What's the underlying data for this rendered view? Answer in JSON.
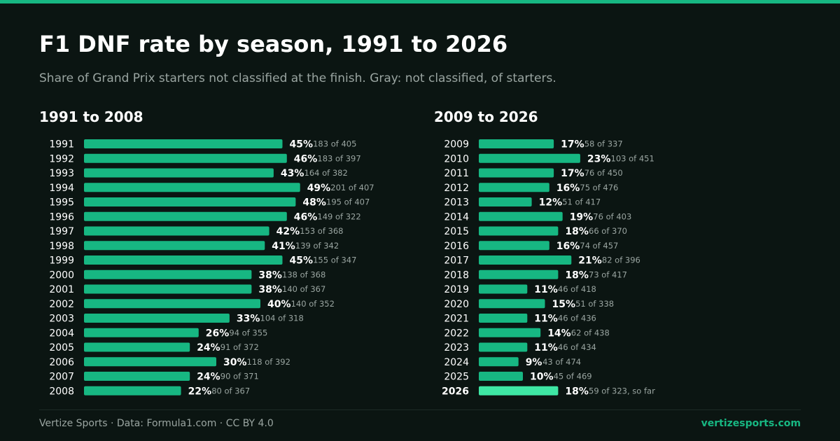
{
  "title": "F1 DNF rate by season, 1991 to 2026",
  "subtitle": "Share of Grand Prix starters not classified at the finish. Gray: not classified, of starters.",
  "footer": {
    "credit": "Vertize Sports · Data: Formula1.com · CC BY 4.0",
    "site": "vertizesports.com"
  },
  "colors": {
    "accent": "#17b782",
    "highlight": "#3ee7a4",
    "background": "#0b1512",
    "muted": "#9aa5a1"
  },
  "chart_data": {
    "type": "bar",
    "orientation": "horizontal",
    "grid": false,
    "panels": [
      {
        "title": "1991 to 2008",
        "rows": [
          {
            "season": "1991",
            "pct": 45,
            "pct_label": "45%",
            "count_label": "183 of 405"
          },
          {
            "season": "1992",
            "pct": 46,
            "pct_label": "46%",
            "count_label": "183 of 397"
          },
          {
            "season": "1993",
            "pct": 43,
            "pct_label": "43%",
            "count_label": "164 of 382"
          },
          {
            "season": "1994",
            "pct": 49,
            "pct_label": "49%",
            "count_label": "201 of 407"
          },
          {
            "season": "1995",
            "pct": 48,
            "pct_label": "48%",
            "count_label": "195 of 407"
          },
          {
            "season": "1996",
            "pct": 46,
            "pct_label": "46%",
            "count_label": "149 of 322"
          },
          {
            "season": "1997",
            "pct": 42,
            "pct_label": "42%",
            "count_label": "153 of 368"
          },
          {
            "season": "1998",
            "pct": 41,
            "pct_label": "41%",
            "count_label": "139 of 342"
          },
          {
            "season": "1999",
            "pct": 45,
            "pct_label": "45%",
            "count_label": "155 of 347"
          },
          {
            "season": "2000",
            "pct": 38,
            "pct_label": "38%",
            "count_label": "138 of 368"
          },
          {
            "season": "2001",
            "pct": 38,
            "pct_label": "38%",
            "count_label": "140 of 367"
          },
          {
            "season": "2002",
            "pct": 40,
            "pct_label": "40%",
            "count_label": "140 of 352"
          },
          {
            "season": "2003",
            "pct": 33,
            "pct_label": "33%",
            "count_label": "104 of 318"
          },
          {
            "season": "2004",
            "pct": 26,
            "pct_label": "26%",
            "count_label": "94 of 355"
          },
          {
            "season": "2005",
            "pct": 24,
            "pct_label": "24%",
            "count_label": "91 of 372"
          },
          {
            "season": "2006",
            "pct": 30,
            "pct_label": "30%",
            "count_label": "118 of 392"
          },
          {
            "season": "2007",
            "pct": 24,
            "pct_label": "24%",
            "count_label": "90 of 371"
          },
          {
            "season": "2008",
            "pct": 22,
            "pct_label": "22%",
            "count_label": "80 of 367"
          }
        ]
      },
      {
        "title": "2009 to 2026",
        "rows": [
          {
            "season": "2009",
            "pct": 17,
            "pct_label": "17%",
            "count_label": "58 of 337"
          },
          {
            "season": "2010",
            "pct": 23,
            "pct_label": "23%",
            "count_label": "103 of 451"
          },
          {
            "season": "2011",
            "pct": 17,
            "pct_label": "17%",
            "count_label": "76 of 450"
          },
          {
            "season": "2012",
            "pct": 16,
            "pct_label": "16%",
            "count_label": "75 of 476"
          },
          {
            "season": "2013",
            "pct": 12,
            "pct_label": "12%",
            "count_label": "51 of 417"
          },
          {
            "season": "2014",
            "pct": 19,
            "pct_label": "19%",
            "count_label": "76 of 403"
          },
          {
            "season": "2015",
            "pct": 18,
            "pct_label": "18%",
            "count_label": "66 of 370"
          },
          {
            "season": "2016",
            "pct": 16,
            "pct_label": "16%",
            "count_label": "74 of 457"
          },
          {
            "season": "2017",
            "pct": 21,
            "pct_label": "21%",
            "count_label": "82 of 396"
          },
          {
            "season": "2018",
            "pct": 18,
            "pct_label": "18%",
            "count_label": "73 of 417"
          },
          {
            "season": "2019",
            "pct": 11,
            "pct_label": "11%",
            "count_label": "46 of 418"
          },
          {
            "season": "2020",
            "pct": 15,
            "pct_label": "15%",
            "count_label": "51 of 338"
          },
          {
            "season": "2021",
            "pct": 11,
            "pct_label": "11%",
            "count_label": "46 of 436"
          },
          {
            "season": "2022",
            "pct": 14,
            "pct_label": "14%",
            "count_label": "62 of 438"
          },
          {
            "season": "2023",
            "pct": 11,
            "pct_label": "11%",
            "count_label": "46 of 434"
          },
          {
            "season": "2024",
            "pct": 9,
            "pct_label": "9%",
            "count_label": "43 of 474"
          },
          {
            "season": "2025",
            "pct": 10,
            "pct_label": "10%",
            "count_label": "45 of 469"
          },
          {
            "season": "2026",
            "pct": 18,
            "pct_label": "18%",
            "count_label": "59 of 323, so far",
            "highlight": true
          }
        ]
      }
    ]
  }
}
